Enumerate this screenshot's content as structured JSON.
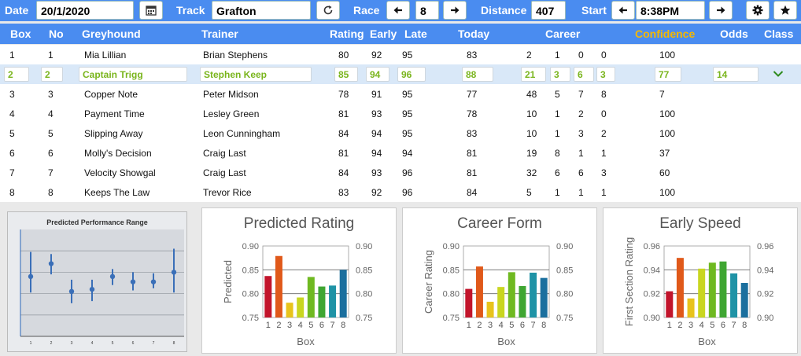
{
  "toolbar": {
    "date_label": "Date",
    "date_value": "20/1/2020",
    "calendar_icon": "calendar-icon",
    "track_label": "Track",
    "track_value": "Grafton",
    "refresh_icon": "refresh-icon",
    "race_label": "Race",
    "race_value": "8",
    "distance_label": "Distance",
    "distance_value": "407",
    "start_label": "Start",
    "start_value": "8:38PM",
    "settings_icon": "gear-icon",
    "favourite_icon": "star-icon"
  },
  "columns": {
    "box": "Box",
    "no": "No",
    "greyhound": "Greyhound",
    "trainer": "Trainer",
    "rating": "Rating",
    "early": "Early",
    "late": "Late",
    "today": "Today",
    "career": "Career",
    "confidence": "Confidence",
    "odds": "Odds",
    "class": "Class"
  },
  "colors": {
    "header_blue": "#4a8cf0",
    "confidence_header": "#f5b800",
    "selected_text": "#7ab51d",
    "selected_row": "#d9e8f8"
  },
  "rows": [
    {
      "box": "1",
      "no": "1",
      "greyhound": "Mia Lillian",
      "trainer": "Brian Stephens",
      "rating": "80",
      "early": "92",
      "late": "95",
      "today": "83",
      "c1": "2",
      "c2": "1",
      "c3": "0",
      "c4": "0",
      "confidence": "100",
      "odds": "",
      "selected": false
    },
    {
      "box": "2",
      "no": "2",
      "greyhound": "Captain Trigg",
      "trainer": "Stephen Keep",
      "rating": "85",
      "early": "94",
      "late": "96",
      "today": "88",
      "c1": "21",
      "c2": "3",
      "c3": "6",
      "c4": "3",
      "confidence": "77",
      "odds": "14",
      "selected": true
    },
    {
      "box": "3",
      "no": "3",
      "greyhound": "Copper Note",
      "trainer": "Peter Midson",
      "rating": "78",
      "early": "91",
      "late": "95",
      "today": "77",
      "c1": "48",
      "c2": "5",
      "c3": "7",
      "c4": "8",
      "confidence": "7",
      "odds": "",
      "selected": false
    },
    {
      "box": "4",
      "no": "4",
      "greyhound": "Payment Time",
      "trainer": "Lesley Green",
      "rating": "81",
      "early": "93",
      "late": "95",
      "today": "78",
      "c1": "10",
      "c2": "1",
      "c3": "2",
      "c4": "0",
      "confidence": "100",
      "odds": "",
      "selected": false
    },
    {
      "box": "5",
      "no": "5",
      "greyhound": "Slipping Away",
      "trainer": "Leon Cunningham",
      "rating": "84",
      "early": "94",
      "late": "95",
      "today": "83",
      "c1": "10",
      "c2": "1",
      "c3": "3",
      "c4": "2",
      "confidence": "100",
      "odds": "",
      "selected": false
    },
    {
      "box": "6",
      "no": "6",
      "greyhound": "Molly's Decision",
      "trainer": "Craig Last",
      "rating": "81",
      "early": "94",
      "late": "94",
      "today": "81",
      "c1": "19",
      "c2": "8",
      "c3": "1",
      "c4": "1",
      "confidence": "37",
      "odds": "",
      "selected": false
    },
    {
      "box": "7",
      "no": "7",
      "greyhound": "Velocity Showgal",
      "trainer": "Craig Last",
      "rating": "84",
      "early": "93",
      "late": "96",
      "today": "81",
      "c1": "32",
      "c2": "6",
      "c3": "6",
      "c4": "3",
      "confidence": "60",
      "odds": "",
      "selected": false
    },
    {
      "box": "8",
      "no": "8",
      "greyhound": "Keeps The Law",
      "trainer": "Trevor Rice",
      "rating": "83",
      "early": "92",
      "late": "96",
      "today": "84",
      "c1": "5",
      "c2": "1",
      "c3": "1",
      "c4": "1",
      "confidence": "100",
      "odds": "",
      "selected": false
    }
  ],
  "chevron_icon": "chevron-down-icon",
  "chart_data": [
    {
      "type": "scatter",
      "title": "Predicted Performance Range",
      "x": [
        1,
        2,
        3,
        4,
        5,
        6,
        7,
        8
      ],
      "y": [
        0.56,
        0.68,
        0.42,
        0.44,
        0.56,
        0.51,
        0.51,
        0.6
      ],
      "y_low": [
        0.41,
        0.58,
        0.31,
        0.33,
        0.48,
        0.43,
        0.45,
        0.41
      ],
      "y_high": [
        0.79,
        0.77,
        0.53,
        0.53,
        0.63,
        0.6,
        0.59,
        0.82
      ],
      "ylim": [
        0,
        1
      ],
      "xlabel": "",
      "ylabel": ""
    },
    {
      "type": "bar",
      "title": "Predicted Rating",
      "categories": [
        "1",
        "2",
        "3",
        "4",
        "5",
        "6",
        "7",
        "8"
      ],
      "values": [
        0.837,
        0.879,
        0.781,
        0.792,
        0.835,
        0.815,
        0.817,
        0.85
      ],
      "xlabel": "Box",
      "ylabel": "Predicted",
      "ylim": [
        0.75,
        0.9
      ],
      "yticks": [
        "0.90",
        "0.85",
        "0.80",
        "0.75"
      ]
    },
    {
      "type": "bar",
      "title": "Career Form",
      "categories": [
        "1",
        "2",
        "3",
        "4",
        "5",
        "6",
        "7",
        "8"
      ],
      "values": [
        0.81,
        0.857,
        0.783,
        0.814,
        0.845,
        0.816,
        0.844,
        0.833
      ],
      "xlabel": "Box",
      "ylabel": "Career Rating",
      "ylim": [
        0.75,
        0.9
      ],
      "yticks": [
        "0.90",
        "0.85",
        "0.80",
        "0.75"
      ]
    },
    {
      "type": "bar",
      "title": "Early Speed",
      "categories": [
        "1",
        "2",
        "3",
        "4",
        "5",
        "6",
        "7",
        "8"
      ],
      "values": [
        0.922,
        0.95,
        0.916,
        0.941,
        0.946,
        0.947,
        0.937,
        0.929
      ],
      "xlabel": "Box",
      "ylabel": "First Section Rating",
      "ylim": [
        0.9,
        0.96
      ],
      "yticks": [
        "0.96",
        "0.94",
        "0.92",
        "0.90"
      ]
    }
  ]
}
